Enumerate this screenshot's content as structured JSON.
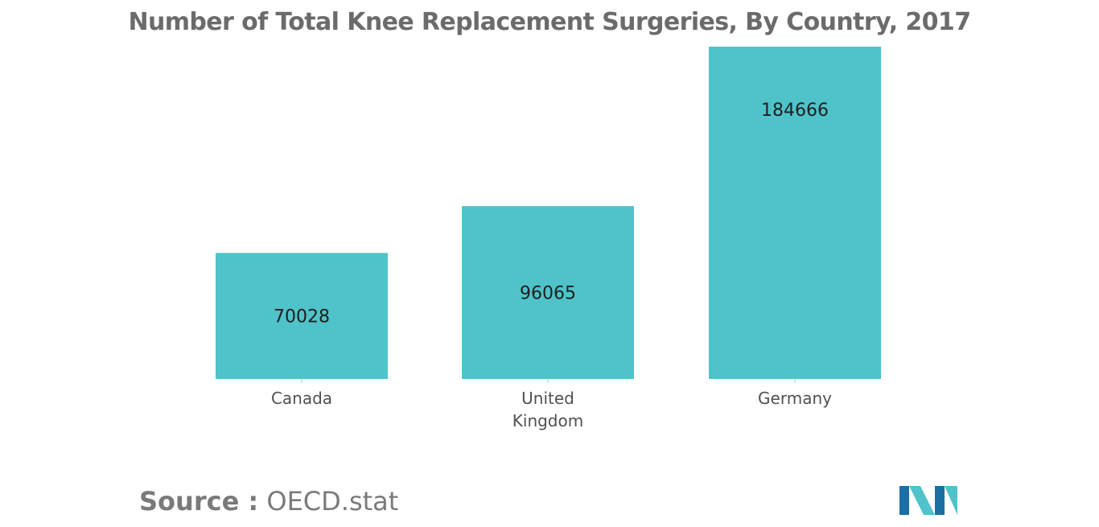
{
  "chart_data": {
    "type": "bar",
    "title": "Number of Total Knee Replacement Surgeries, By Country, 2017",
    "categories": [
      [
        "Canada"
      ],
      [
        "United",
        "Kingdom"
      ],
      [
        "Germany"
      ]
    ],
    "values": [
      70028,
      96065,
      184666
    ],
    "data_labels": [
      "70028",
      "96065",
      "184666"
    ],
    "xlabel": "",
    "ylabel": "",
    "y_axis_visible": false,
    "grid": false,
    "legend": "none",
    "bar_color": "#4fc3c9"
  },
  "source": {
    "label": "Source :",
    "text": "OECD.stat"
  },
  "colors": {
    "logo_dark": "#1b6fa3",
    "logo_light": "#4fc3c9"
  }
}
